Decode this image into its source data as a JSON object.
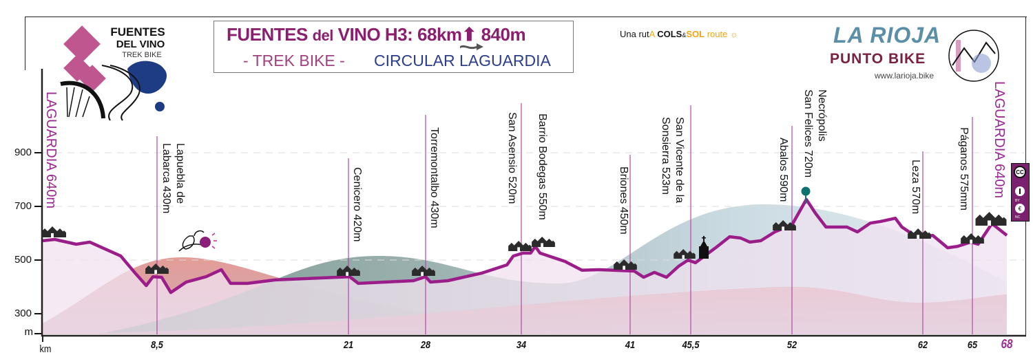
{
  "header": {
    "title_a": "FUENTES",
    "title_b": "del",
    "title_c": "VINO H3:",
    "distance": "68km",
    "climb": "840m",
    "subtitle_left": "- TREK BIKE -",
    "subtitle_right": "CIRCULAR LAGUARDIA"
  },
  "logo_left": {
    "line1": "FUENTES",
    "line2": "DEL VINO",
    "line3": "TREK BIKE"
  },
  "cols_sol": {
    "a": "Una rut",
    "b": "A ",
    "c": "COLS",
    "d": "&",
    "e": "SOL",
    "f": " route"
  },
  "brand": {
    "name": "LA RIOJA",
    "sub": "PUNTO BIKE",
    "url": "www.larioja.bike"
  },
  "license": {
    "cc": "CC",
    "by": "BY",
    "nc": "NC"
  },
  "colors": {
    "profile": "#9b1d8a",
    "marker_line": "#b04aa3",
    "town": "#9b2a93",
    "peak_pin": "#0f7070"
  },
  "chart_data": {
    "type": "area",
    "title": "FUENTES del VINO H3: 68km 840m",
    "xlabel": "km",
    "ylabel": "m",
    "ylim": [
      223,
      1000
    ],
    "xlim": [
      0,
      68
    ],
    "grid": true,
    "y_ticks": [
      900,
      700,
      500,
      300
    ],
    "x_ticks": [
      {
        "km": 0,
        "label": ""
      },
      {
        "km": 8.5,
        "label": "8,5"
      },
      {
        "km": 21,
        "label": "21"
      },
      {
        "km": 28,
        "label": "28"
      },
      {
        "km": 34,
        "label": "34"
      },
      {
        "km": 41,
        "label": "41"
      },
      {
        "km": 45.5,
        "label": "45,5"
      },
      {
        "km": 52,
        "label": "52"
      },
      {
        "km": 62,
        "label": "62"
      },
      {
        "km": 65,
        "label": "65"
      },
      {
        "km": 68,
        "label": "68"
      }
    ],
    "profile": {
      "km": [
        0,
        0.9,
        2.5,
        3.5,
        5.8,
        6.8,
        7.7,
        8.2,
        8.8,
        9.4,
        10.4,
        11.7,
        12.7,
        13.3,
        14.4,
        16.2,
        21.1,
        21.9,
        26.9,
        28,
        28.3,
        29.4,
        31.5,
        33.1,
        33.5,
        34.1,
        34.6,
        34.9,
        35.2,
        36.8,
        37.9,
        39,
        41.3,
        42,
        42.8,
        43.7,
        44.6,
        45.3,
        45.8,
        47.1,
        48,
        48.7,
        49.3,
        50,
        50.9,
        52,
        53.1,
        53.8,
        54.6,
        56.2,
        57,
        58,
        58.8,
        59.9,
        60.4,
        61.2,
        62,
        62.6,
        63.5,
        64.1,
        64.9,
        65.5,
        66.7,
        68
      ],
      "elevation_m": [
        572,
        577,
        559,
        567,
        515,
        456,
        405,
        438,
        436,
        379,
        418,
        438,
        464,
        413,
        413,
        426,
        438,
        413,
        423,
        438,
        418,
        423,
        451,
        482,
        515,
        526,
        526,
        551,
        526,
        495,
        462,
        464,
        459,
        436,
        454,
        436,
        477,
        500,
        490,
        546,
        587,
        582,
        567,
        572,
        605,
        631,
        726,
        674,
        623,
        623,
        605,
        638,
        644,
        656,
        623,
        597,
        585,
        592,
        546,
        551,
        567,
        559,
        636,
        592
      ]
    },
    "waypoints": [
      {
        "km": 0,
        "lines": [
          "LAGUARDIA 640m"
        ],
        "town": true
      },
      {
        "km": 8.5,
        "lines": [
          "Lapuebla de",
          "Labarca 430m"
        ]
      },
      {
        "km": 21,
        "lines": [
          "Cenicero 420m"
        ]
      },
      {
        "km": 28,
        "lines": [
          "Torremontalbo 430m"
        ]
      },
      {
        "km": 34,
        "lines": [
          "San Asensio 520m"
        ]
      },
      {
        "km": 34,
        "lines": [
          "Barrio Bodegas 550m"
        ]
      },
      {
        "km": 41,
        "lines": [
          "Briones 450m"
        ]
      },
      {
        "km": 45.5,
        "lines": [
          "San Vicente de la",
          "Sonsierra 523m"
        ]
      },
      {
        "km": 52,
        "lines": [
          "Abalos 590m"
        ]
      },
      {
        "km": 53,
        "lines": [
          "Necrópolis",
          "San Felices 720m"
        ],
        "peak": true
      },
      {
        "km": 62,
        "lines": [
          "Leza 570m"
        ]
      },
      {
        "km": 65,
        "lines": [
          "Páganos 575mm"
        ]
      },
      {
        "km": 68,
        "lines": [
          "LAGUARDIA 640m"
        ],
        "town": true
      }
    ]
  }
}
